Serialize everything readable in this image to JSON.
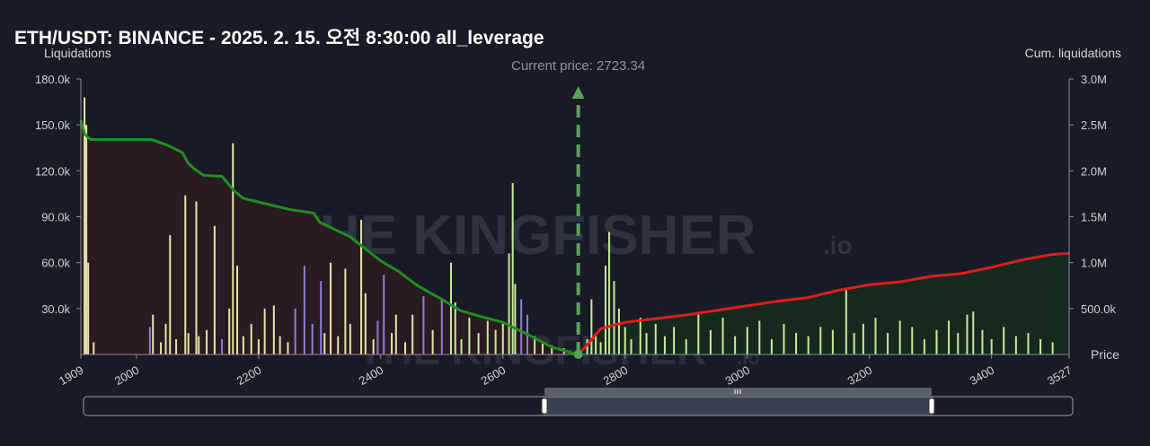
{
  "title": "ETH/USDT: BINANCE - 2025. 2. 15. 오전 8:30:00 all_leverage",
  "watermark": {
    "main": "THE KINGFISHER",
    "suffix": ".io"
  },
  "colors": {
    "background": "#181a25",
    "short_area": "#2a1a22",
    "long_area": "#142a1e",
    "cum_short_line": "#1f8f1f",
    "cum_long_line": "#e01c1c",
    "bar_green": "#c8ec9a",
    "bar_yellow": "#e6e6a8",
    "bar_purple": "#8c7fd6",
    "current_price_line": "#5aa05a"
  },
  "chart_data": {
    "type": "bar",
    "left_axis_title": "Liquidations",
    "right_axis_title": "Cum. liquidations",
    "x_axis_title": "Price",
    "x_range": [
      1909,
      3527
    ],
    "y_left_range": [
      0,
      180000
    ],
    "y_right_range": [
      0,
      3000000
    ],
    "x_ticks": [
      "1909",
      "2000",
      "2200",
      "2400",
      "2600",
      "2800",
      "3000",
      "3200",
      "3400",
      "3527"
    ],
    "y_left_ticks": [
      "30.0k",
      "60.0k",
      "90.0k",
      "120.0k",
      "150.0k",
      "180.0k"
    ],
    "y_right_ticks": [
      "500.0k",
      "1.0M",
      "1.5M",
      "2.0M",
      "2.5M",
      "3.0M"
    ],
    "current_price_label": "Current price: 2723.34",
    "current_price": 2723.34,
    "bars": [
      {
        "x": 1915,
        "y": 168000,
        "c": "y"
      },
      {
        "x": 1918,
        "y": 150000,
        "c": "y"
      },
      {
        "x": 1921,
        "y": 60000,
        "c": "y"
      },
      {
        "x": 1930,
        "y": 8000,
        "c": "y"
      },
      {
        "x": 2022,
        "y": 18000,
        "c": "p"
      },
      {
        "x": 2027,
        "y": 26000,
        "c": "y"
      },
      {
        "x": 2040,
        "y": 8000,
        "c": "y"
      },
      {
        "x": 2048,
        "y": 20000,
        "c": "y"
      },
      {
        "x": 2055,
        "y": 78000,
        "c": "y"
      },
      {
        "x": 2065,
        "y": 10000,
        "c": "y"
      },
      {
        "x": 2080,
        "y": 104000,
        "c": "y"
      },
      {
        "x": 2085,
        "y": 14000,
        "c": "y"
      },
      {
        "x": 2098,
        "y": 100000,
        "c": "y"
      },
      {
        "x": 2102,
        "y": 12000,
        "c": "y"
      },
      {
        "x": 2115,
        "y": 16000,
        "c": "y"
      },
      {
        "x": 2128,
        "y": 84000,
        "c": "y"
      },
      {
        "x": 2140,
        "y": 10000,
        "c": "p"
      },
      {
        "x": 2152,
        "y": 30000,
        "c": "y"
      },
      {
        "x": 2158,
        "y": 138000,
        "c": "y"
      },
      {
        "x": 2165,
        "y": 58000,
        "c": "y"
      },
      {
        "x": 2175,
        "y": 12000,
        "c": "y"
      },
      {
        "x": 2188,
        "y": 20000,
        "c": "y"
      },
      {
        "x": 2200,
        "y": 10000,
        "c": "y"
      },
      {
        "x": 2210,
        "y": 30000,
        "c": "y"
      },
      {
        "x": 2225,
        "y": 32000,
        "c": "y"
      },
      {
        "x": 2235,
        "y": 12000,
        "c": "y"
      },
      {
        "x": 2248,
        "y": 8000,
        "c": "y"
      },
      {
        "x": 2260,
        "y": 30000,
        "c": "p"
      },
      {
        "x": 2275,
        "y": 58000,
        "c": "p"
      },
      {
        "x": 2288,
        "y": 20000,
        "c": "p"
      },
      {
        "x": 2302,
        "y": 48000,
        "c": "p"
      },
      {
        "x": 2308,
        "y": 14000,
        "c": "y"
      },
      {
        "x": 2318,
        "y": 60000,
        "c": "y"
      },
      {
        "x": 2330,
        "y": 12000,
        "c": "y"
      },
      {
        "x": 2342,
        "y": 56000,
        "c": "y"
      },
      {
        "x": 2350,
        "y": 20000,
        "c": "y"
      },
      {
        "x": 2368,
        "y": 88000,
        "c": "y"
      },
      {
        "x": 2375,
        "y": 40000,
        "c": "y"
      },
      {
        "x": 2388,
        "y": 10000,
        "c": "y"
      },
      {
        "x": 2395,
        "y": 22000,
        "c": "p"
      },
      {
        "x": 2405,
        "y": 52000,
        "c": "p"
      },
      {
        "x": 2418,
        "y": 14000,
        "c": "y"
      },
      {
        "x": 2425,
        "y": 26000,
        "c": "y"
      },
      {
        "x": 2440,
        "y": 8000,
        "c": "y"
      },
      {
        "x": 2452,
        "y": 26000,
        "c": "y"
      },
      {
        "x": 2470,
        "y": 38000,
        "c": "p"
      },
      {
        "x": 2485,
        "y": 16000,
        "c": "y"
      },
      {
        "x": 2500,
        "y": 36000,
        "c": "p"
      },
      {
        "x": 2515,
        "y": 60000,
        "c": "g"
      },
      {
        "x": 2522,
        "y": 34000,
        "c": "g"
      },
      {
        "x": 2532,
        "y": 10000,
        "c": "g"
      },
      {
        "x": 2545,
        "y": 24000,
        "c": "g"
      },
      {
        "x": 2560,
        "y": 14000,
        "c": "g"
      },
      {
        "x": 2575,
        "y": 22000,
        "c": "g"
      },
      {
        "x": 2588,
        "y": 16000,
        "c": "g"
      },
      {
        "x": 2600,
        "y": 20000,
        "c": "g"
      },
      {
        "x": 2610,
        "y": 66000,
        "c": "g"
      },
      {
        "x": 2616,
        "y": 112000,
        "c": "g"
      },
      {
        "x": 2620,
        "y": 46000,
        "c": "g"
      },
      {
        "x": 2630,
        "y": 36000,
        "c": "p"
      },
      {
        "x": 2640,
        "y": 26000,
        "c": "p"
      },
      {
        "x": 2652,
        "y": 12000,
        "c": "g"
      },
      {
        "x": 2665,
        "y": 8000,
        "c": "g"
      },
      {
        "x": 2680,
        "y": 6000,
        "c": "g"
      },
      {
        "x": 2700,
        "y": 4000,
        "c": "g"
      },
      {
        "x": 2738,
        "y": 10000,
        "c": "g"
      },
      {
        "x": 2745,
        "y": 36000,
        "c": "g"
      },
      {
        "x": 2752,
        "y": 14000,
        "c": "g"
      },
      {
        "x": 2760,
        "y": 8000,
        "c": "g"
      },
      {
        "x": 2768,
        "y": 58000,
        "c": "g"
      },
      {
        "x": 2774,
        "y": 80000,
        "c": "g"
      },
      {
        "x": 2782,
        "y": 48000,
        "c": "g"
      },
      {
        "x": 2790,
        "y": 30000,
        "c": "g"
      },
      {
        "x": 2800,
        "y": 18000,
        "c": "g"
      },
      {
        "x": 2810,
        "y": 10000,
        "c": "g"
      },
      {
        "x": 2825,
        "y": 24000,
        "c": "g"
      },
      {
        "x": 2835,
        "y": 14000,
        "c": "g"
      },
      {
        "x": 2850,
        "y": 20000,
        "c": "g"
      },
      {
        "x": 2865,
        "y": 12000,
        "c": "g"
      },
      {
        "x": 2880,
        "y": 18000,
        "c": "g"
      },
      {
        "x": 2900,
        "y": 10000,
        "c": "g"
      },
      {
        "x": 2920,
        "y": 26000,
        "c": "g"
      },
      {
        "x": 2940,
        "y": 16000,
        "c": "g"
      },
      {
        "x": 2960,
        "y": 24000,
        "c": "g"
      },
      {
        "x": 2980,
        "y": 12000,
        "c": "g"
      },
      {
        "x": 3000,
        "y": 18000,
        "c": "g"
      },
      {
        "x": 3020,
        "y": 22000,
        "c": "g"
      },
      {
        "x": 3040,
        "y": 10000,
        "c": "g"
      },
      {
        "x": 3060,
        "y": 20000,
        "c": "g"
      },
      {
        "x": 3080,
        "y": 14000,
        "c": "g"
      },
      {
        "x": 3100,
        "y": 12000,
        "c": "g"
      },
      {
        "x": 3120,
        "y": 18000,
        "c": "g"
      },
      {
        "x": 3140,
        "y": 16000,
        "c": "g"
      },
      {
        "x": 3162,
        "y": 42000,
        "c": "g"
      },
      {
        "x": 3175,
        "y": 14000,
        "c": "g"
      },
      {
        "x": 3190,
        "y": 20000,
        "c": "g"
      },
      {
        "x": 3210,
        "y": 24000,
        "c": "g"
      },
      {
        "x": 3230,
        "y": 14000,
        "c": "g"
      },
      {
        "x": 3250,
        "y": 22000,
        "c": "g"
      },
      {
        "x": 3270,
        "y": 18000,
        "c": "g"
      },
      {
        "x": 3290,
        "y": 10000,
        "c": "g"
      },
      {
        "x": 3310,
        "y": 16000,
        "c": "g"
      },
      {
        "x": 3330,
        "y": 22000,
        "c": "g"
      },
      {
        "x": 3345,
        "y": 14000,
        "c": "g"
      },
      {
        "x": 3360,
        "y": 26000,
        "c": "g"
      },
      {
        "x": 3370,
        "y": 28000,
        "c": "g"
      },
      {
        "x": 3385,
        "y": 16000,
        "c": "g"
      },
      {
        "x": 3400,
        "y": 10000,
        "c": "g"
      },
      {
        "x": 3420,
        "y": 18000,
        "c": "g"
      },
      {
        "x": 3440,
        "y": 12000,
        "c": "g"
      },
      {
        "x": 3460,
        "y": 14000,
        "c": "g"
      },
      {
        "x": 3480,
        "y": 10000,
        "c": "g"
      },
      {
        "x": 3500,
        "y": 8000,
        "c": "g"
      }
    ],
    "cum_short_series": {
      "x": [
        1909,
        1915,
        1925,
        1950,
        2000,
        2025,
        2050,
        2075,
        2085,
        2095,
        2110,
        2140,
        2160,
        2175,
        2200,
        2250,
        2290,
        2300,
        2350,
        2375,
        2400,
        2430,
        2460,
        2500,
        2530,
        2560,
        2600,
        2640,
        2680,
        2723
      ],
      "y": [
        2550000,
        2400000,
        2340000,
        2340000,
        2340000,
        2340000,
        2280000,
        2200000,
        2080000,
        2020000,
        1950000,
        1940000,
        1780000,
        1700000,
        1660000,
        1580000,
        1540000,
        1440000,
        1280000,
        1150000,
        1020000,
        900000,
        750000,
        600000,
        480000,
        420000,
        350000,
        220000,
        80000,
        0
      ]
    },
    "cum_long_series": {
      "x": [
        2723,
        2740,
        2760,
        2800,
        2850,
        2900,
        2950,
        3000,
        3050,
        3100,
        3150,
        3200,
        3250,
        3300,
        3350,
        3400,
        3450,
        3500,
        3527
      ],
      "y": [
        0,
        120000,
        280000,
        350000,
        390000,
        430000,
        480000,
        530000,
        580000,
        620000,
        700000,
        760000,
        790000,
        850000,
        880000,
        950000,
        1030000,
        1090000,
        1100000
      ]
    },
    "grid": false
  }
}
